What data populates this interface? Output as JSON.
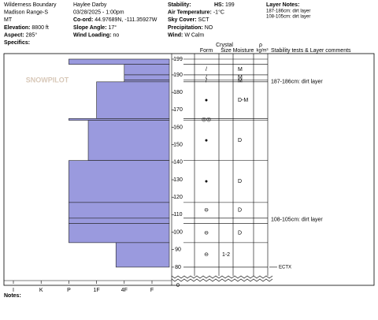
{
  "header": {
    "site": [
      "Wilderness Boundary",
      "Madison Range-S",
      "MT",
      {
        "label": "Elevation:",
        "value": "8800 ft"
      },
      {
        "label": "Aspect:",
        "value": "285°"
      },
      {
        "label": "Specifics:"
      }
    ],
    "observer": [
      "Haylee Darby",
      "03/28/2025 - 1:00pm",
      {
        "label": "Co-ord:",
        "value": "44.97689N, -111.35927W"
      },
      {
        "label": "Slope Angle:",
        "value": "17°"
      },
      {
        "label": "Wind Loading:",
        "value": "no"
      }
    ],
    "weather": [
      {
        "label": "Stability:"
      },
      {
        "label": "Air Temperature:",
        "value": "-1°C"
      },
      {
        "label": "Sky Cover:",
        "value": "SCT"
      },
      {
        "label": "Precipitation:",
        "value": "NO"
      },
      {
        "label": "Wind:",
        "value": "W Calm"
      }
    ],
    "hs": {
      "label": "HS:",
      "value": "199"
    },
    "layer_notes": {
      "title": "Layer Notes:",
      "items": [
        "187-186cm: dirt layer",
        "108-105cm: dirt layer"
      ]
    }
  },
  "columns": {
    "crystal": "Crystal",
    "form": "Form",
    "size": "Size",
    "moisture": "Moisture",
    "rho": "ρ",
    "rho_unit": "kg/m³",
    "comments": "Stability tests & Layer comments"
  },
  "watermark": "SNOWPILOT",
  "chart_data": {
    "type": "snowpit",
    "ylim": [
      72.3,
      199
    ],
    "yticks": [
      80,
      90,
      100,
      110,
      120,
      130,
      140,
      150,
      160,
      170,
      180,
      190,
      199
    ],
    "ybreak_label": "0",
    "xlim": [
      0,
      6
    ],
    "xticks": [
      {
        "value": 6,
        "label": "I"
      },
      {
        "value": 5,
        "label": "K"
      },
      {
        "value": 4,
        "label": "P"
      },
      {
        "value": 3,
        "label": "1F"
      },
      {
        "value": 2,
        "label": "4F"
      },
      {
        "value": 1,
        "label": "F"
      }
    ],
    "color": "#9a9ade",
    "layers": [
      {
        "top": 199,
        "bottom": 196,
        "hardness": 4
      },
      {
        "top": 196,
        "bottom": 190,
        "hardness": 2,
        "form": "/",
        "moisture": "M"
      },
      {
        "top": 190,
        "bottom": 187,
        "hardness": 2,
        "form": "/",
        "moisture": "M"
      },
      {
        "top": 187,
        "bottom": 186,
        "hardness": 2,
        "form": "/",
        "moisture": "M",
        "comment": "187-186cm: dirt layer"
      },
      {
        "top": 186,
        "bottom": 165,
        "hardness": 3,
        "form": "●",
        "moisture": "D-M"
      },
      {
        "top": 165,
        "bottom": 164,
        "hardness": 4,
        "form": "◎◎"
      },
      {
        "top": 164,
        "bottom": 141,
        "hardness": 3.3,
        "form": "●",
        "moisture": "D"
      },
      {
        "top": 141,
        "bottom": 117,
        "hardness": 4,
        "form": "●",
        "moisture": "D"
      },
      {
        "top": 117,
        "bottom": 108,
        "hardness": 4,
        "form": "⊖",
        "moisture": "D"
      },
      {
        "top": 108,
        "bottom": 105,
        "hardness": 4,
        "comment": "108-105cm: dirt layer"
      },
      {
        "top": 105,
        "bottom": 94,
        "hardness": 4,
        "form": "⊖",
        "moisture": "D"
      },
      {
        "top": 94,
        "bottom": 80,
        "hardness": 2.3,
        "form": "⊖",
        "size": "1-2",
        "test": "ECTX"
      }
    ]
  },
  "notes": "Notes:"
}
